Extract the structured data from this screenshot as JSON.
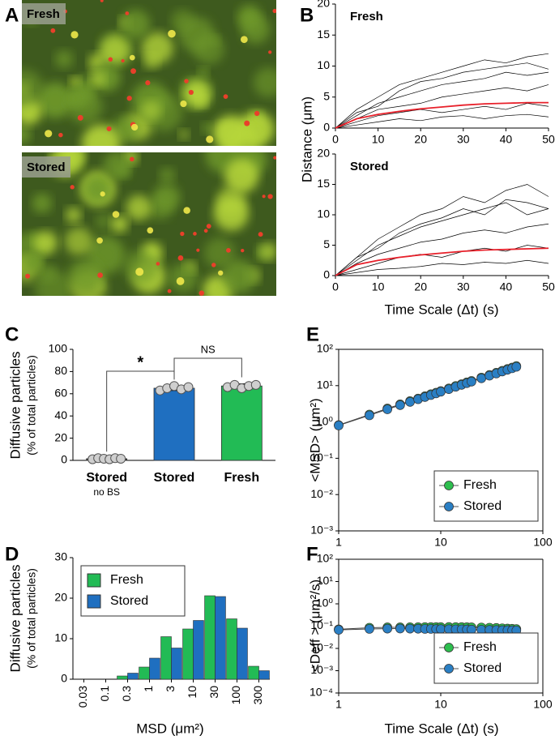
{
  "panel_a": {
    "label": "A",
    "images": [
      "Fresh",
      "Stored"
    ]
  },
  "chart_data": [
    {
      "type": "line",
      "panel": "B",
      "title": "Fresh",
      "y_label": "Distance (μm)",
      "x": [
        0,
        5,
        10,
        15,
        20,
        25,
        30,
        35,
        40,
        45,
        50
      ],
      "series": [
        {
          "color": "#000000",
          "values": [
            0,
            3,
            5,
            7,
            8,
            9,
            10,
            11,
            10.5,
            11.5,
            12
          ]
        },
        {
          "color": "#000000",
          "values": [
            0,
            2,
            4,
            5,
            6,
            7,
            7.5,
            8,
            9,
            8.5,
            9
          ]
        },
        {
          "color": "#000000",
          "values": [
            0,
            1.5,
            3,
            3.5,
            4,
            5,
            5.5,
            6,
            6.5,
            6,
            7
          ]
        },
        {
          "color": "#000000",
          "values": [
            0,
            1,
            2,
            2.5,
            3,
            2.5,
            3,
            3.5,
            3,
            4,
            3.5
          ]
        },
        {
          "color": "#000000",
          "values": [
            0,
            0.5,
            1,
            1.5,
            1.2,
            1.8,
            2,
            1.5,
            2,
            2.2,
            1.8
          ]
        },
        {
          "color": "#000000",
          "values": [
            0,
            2.5,
            3.5,
            6,
            7.5,
            8,
            9,
            9.5,
            10,
            10.5,
            9.5
          ]
        },
        {
          "color": "#e8202a",
          "values": [
            0,
            1.5,
            2.2,
            2.7,
            3.1,
            3.4,
            3.7,
            3.9,
            4.0,
            4.1,
            4.1
          ]
        }
      ],
      "xlim": [
        0,
        50
      ],
      "ylim": [
        0,
        20
      ],
      "xticks": [
        0,
        10,
        20,
        30,
        40,
        50
      ],
      "yticks": [
        0,
        5,
        10,
        15,
        20
      ]
    },
    {
      "type": "line",
      "title": "Stored",
      "x_label": "Time Scale (Δt) (s)",
      "x": [
        0,
        5,
        10,
        15,
        20,
        25,
        30,
        35,
        40,
        45,
        50
      ],
      "series": [
        {
          "color": "#000000",
          "values": [
            0,
            3,
            6,
            8,
            10,
            11,
            13,
            12,
            14,
            15,
            13
          ]
        },
        {
          "color": "#000000",
          "values": [
            0,
            2.5,
            5,
            6.5,
            8,
            9,
            10,
            11,
            12,
            10,
            11
          ]
        },
        {
          "color": "#000000",
          "values": [
            0,
            2,
            3.5,
            4.5,
            5.5,
            6,
            7,
            7.5,
            7,
            8,
            8.5
          ]
        },
        {
          "color": "#000000",
          "values": [
            0,
            1,
            2,
            3,
            3.5,
            3,
            4,
            4.5,
            4,
            5,
            4.5
          ]
        },
        {
          "color": "#000000",
          "values": [
            0,
            0.5,
            1,
            1.2,
            1.5,
            2,
            1.8,
            2.2,
            2,
            2.5,
            2
          ]
        },
        {
          "color": "#000000",
          "values": [
            0,
            3,
            4.5,
            7,
            8.5,
            9.5,
            11,
            10,
            12.5,
            12,
            11
          ]
        },
        {
          "color": "#e8202a",
          "values": [
            0,
            1.8,
            2.5,
            3.0,
            3.4,
            3.7,
            4.0,
            4.2,
            4.3,
            4.4,
            4.5
          ]
        }
      ],
      "xlim": [
        0,
        50
      ],
      "ylim": [
        0,
        20
      ],
      "xticks": [
        0,
        10,
        20,
        30,
        40,
        50
      ],
      "yticks": [
        0,
        5,
        10,
        15,
        20
      ]
    },
    {
      "type": "bar",
      "panel": "C",
      "y_label": "Diffusive particles",
      "y_label_sub": "(% of total particles)",
      "categories": [
        "Stored",
        "Stored",
        "Fresh"
      ],
      "category_sublabels": [
        "no BS",
        null,
        null
      ],
      "values": [
        1.5,
        65,
        67
      ],
      "error": [
        0.5,
        2,
        2
      ],
      "points": [
        [
          1,
          2,
          1.5,
          1,
          2,
          1.5
        ],
        [
          63,
          65,
          67,
          64,
          66
        ],
        [
          66,
          68,
          65,
          67,
          68
        ]
      ],
      "colors": [
        "#333333",
        "#1f6fc0",
        "#22bb55"
      ],
      "annotations": [
        "*",
        "NS"
      ],
      "ylim": [
        0,
        100
      ],
      "yticks": [
        0,
        20,
        40,
        60,
        80,
        100
      ]
    },
    {
      "type": "grouped_bar",
      "panel": "D",
      "y_label": "Diffusive particles",
      "y_label_sub": "(% of total particles)",
      "x_label": "MSD (μm²)",
      "categories": [
        "0.03",
        "0.1",
        "0.3",
        "1",
        "3",
        "10",
        "30",
        "100",
        "300"
      ],
      "series": [
        {
          "name": "Fresh",
          "color": "#22bb55",
          "values": [
            0,
            0,
            0.8,
            3,
            10.5,
            12.4,
            20.6,
            14.9,
            3.2
          ]
        },
        {
          "name": "Stored",
          "color": "#1f6fc0",
          "values": [
            0,
            0,
            1.5,
            5.2,
            7.7,
            14.5,
            20.4,
            12.6,
            2.1
          ]
        }
      ],
      "legend": "upper left",
      "ylim": [
        0,
        30
      ],
      "yticks": [
        0,
        10,
        20,
        30
      ]
    },
    {
      "type": "line",
      "panel": "E",
      "y_label": "<MSD>  (μm²)",
      "log_x": true,
      "log_y": true,
      "markers": true,
      "x": [
        1,
        2,
        3,
        4,
        5,
        6,
        7,
        8,
        9,
        10,
        12,
        14,
        16,
        18,
        20,
        25,
        30,
        35,
        40,
        45,
        50,
        55
      ],
      "series": [
        {
          "name": "Fresh",
          "color": "#2dbe4e",
          "values": [
            0.82,
            1.6,
            2.35,
            3.05,
            3.75,
            4.4,
            5.1,
            5.8,
            6.4,
            7.1,
            8.4,
            9.8,
            11,
            12.3,
            13.5,
            16.7,
            19.7,
            22.7,
            25.7,
            28.7,
            31.5,
            34.6
          ]
        },
        {
          "name": "Stored",
          "color": "#2a7fc4",
          "values": [
            0.8,
            1.52,
            2.23,
            2.9,
            3.56,
            4.22,
            4.86,
            5.5,
            6.1,
            6.8,
            8.0,
            9.3,
            10.5,
            11.7,
            12.9,
            15.9,
            18.8,
            21.6,
            24.5,
            27.3,
            30,
            33
          ]
        }
      ],
      "legend": "lower right",
      "xlim": [
        1,
        100
      ],
      "ylim": [
        0.001,
        100
      ],
      "xticks": [
        1,
        10,
        100
      ],
      "yticks": [
        {
          "value": 0.001,
          "label": "10⁻³"
        },
        {
          "value": 0.01,
          "label": "10⁻²"
        },
        {
          "value": 0.1,
          "label": "10⁻¹"
        },
        {
          "value": 1,
          "label": "10⁰"
        },
        {
          "value": 10,
          "label": "10¹"
        },
        {
          "value": 100,
          "label": "10²"
        }
      ]
    },
    {
      "type": "line",
      "panel": "F",
      "y_label": "<Deff >  (μm²/s)",
      "x_label": "Time Scale (Δt) (s)",
      "log_x": true,
      "log_y": true,
      "markers": true,
      "x": [
        1,
        2,
        3,
        4,
        5,
        6,
        7,
        8,
        9,
        10,
        12,
        14,
        16,
        18,
        20,
        25,
        30,
        35,
        40,
        45,
        50,
        55
      ],
      "series": [
        {
          "name": "Fresh",
          "color": "#2dbe4e",
          "values": [
            0.072,
            0.085,
            0.088,
            0.088,
            0.089,
            0.089,
            0.09,
            0.09,
            0.09,
            0.09,
            0.091,
            0.09,
            0.09,
            0.089,
            0.088,
            0.087,
            0.085,
            0.083,
            0.08,
            0.078,
            0.076,
            0.074
          ]
        },
        {
          "name": "Stored",
          "color": "#2a7fc4",
          "values": [
            0.068,
            0.075,
            0.077,
            0.078,
            0.077,
            0.076,
            0.075,
            0.075,
            0.074,
            0.074,
            0.073,
            0.072,
            0.072,
            0.071,
            0.07,
            0.069,
            0.068,
            0.067,
            0.066,
            0.066,
            0.065,
            0.064
          ]
        }
      ],
      "legend": "lower right",
      "xlim": [
        1,
        100
      ],
      "ylim": [
        0.0001,
        100
      ],
      "xticks": [
        1,
        10,
        100
      ],
      "yticks": [
        {
          "value": 0.0001,
          "label": "10⁻⁴"
        },
        {
          "value": 0.001,
          "label": "10⁻³"
        },
        {
          "value": 0.01,
          "label": "10⁻²"
        },
        {
          "value": 0.1,
          "label": "10⁻¹"
        },
        {
          "value": 1,
          "label": "10⁰"
        },
        {
          "value": 10,
          "label": "10¹"
        },
        {
          "value": 100,
          "label": "10²"
        }
      ]
    }
  ]
}
